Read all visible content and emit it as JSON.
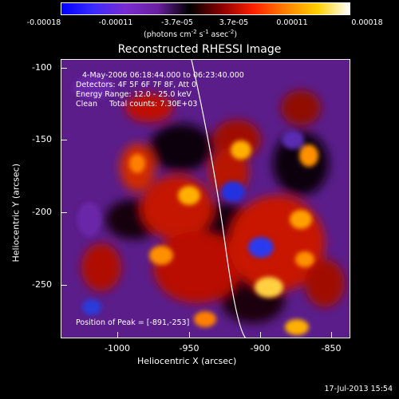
{
  "colorbar": {
    "ticks": [
      "-0.00018",
      "-0.00011",
      "-3.7e-05",
      "3.7e-05",
      "0.00011",
      "0.00018"
    ],
    "unit_prefix": "(photons cm",
    "unit_exp1": "-2",
    "unit_mid": " s",
    "unit_exp2": "-1",
    "unit_mid2": " asec",
    "unit_exp3": "-2",
    "unit_suffix": ")",
    "gradient_colors": [
      "#0000ff",
      "#3b2bff",
      "#7a2cd0",
      "#6a20a0",
      "#000000",
      "#8a0000",
      "#ff2000",
      "#ff8000",
      "#ffd000",
      "#ffffff"
    ]
  },
  "image": {
    "title": "Reconstructed RHESSI Image",
    "info_lines": [
      "4-May-2006 06:18:44.000 to 06:23:40.000",
      "Detectors: 4F 5F 6F 7F 8F, Att 0",
      "Energy Range: 12.0 - 25.0 keV",
      "Clean     Total counts: 7.30E+03"
    ],
    "peak_label": "Position of Peak = [-891,-253]"
  },
  "axes": {
    "xlabel": "Heliocentric X (arcsec)",
    "ylabel": "Heliocentric Y (arcsec)",
    "xticks": [
      "-1000",
      "-950",
      "-900",
      "-850"
    ],
    "yticks": [
      "-100",
      "-150",
      "-200",
      "-250"
    ],
    "xlim": [
      -1040,
      -840
    ],
    "ylim": [
      -285,
      -95
    ]
  },
  "footer": {
    "timestamp": "17-Jul-2013 15:54"
  }
}
